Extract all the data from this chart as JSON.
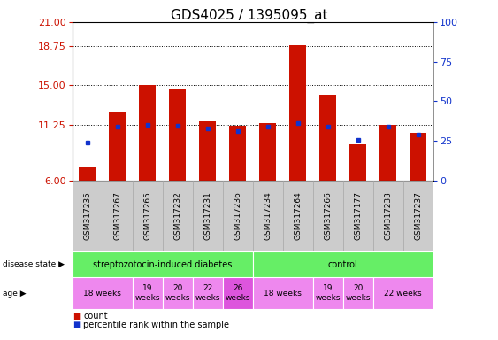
{
  "title": "GDS4025 / 1395095_at",
  "samples": [
    "GSM317235",
    "GSM317267",
    "GSM317265",
    "GSM317232",
    "GSM317231",
    "GSM317236",
    "GSM317234",
    "GSM317264",
    "GSM317266",
    "GSM317177",
    "GSM317233",
    "GSM317237"
  ],
  "red_values": [
    7.2,
    12.5,
    15.0,
    14.6,
    11.55,
    11.2,
    11.45,
    18.85,
    14.1,
    9.4,
    11.25,
    10.5
  ],
  "blue_values": [
    9.6,
    11.05,
    11.22,
    11.15,
    10.95,
    10.65,
    11.1,
    11.45,
    11.05,
    9.8,
    11.05,
    10.3
  ],
  "y_min": 6,
  "y_max": 21,
  "y_ticks_left": [
    6,
    11.25,
    15,
    18.75,
    21
  ],
  "y_ticks_right": [
    0,
    25,
    50,
    75,
    100
  ],
  "bar_width": 0.55,
  "red_color": "#cc1100",
  "blue_color": "#1133cc",
  "legend_count_color": "#cc1100",
  "legend_pct_color": "#1133cc",
  "bg_color": "#ffffff",
  "tick_label_color_left": "#cc1100",
  "tick_label_color_right": "#1133cc",
  "title_fontsize": 11,
  "tick_fontsize": 8,
  "sample_fontsize": 6.5,
  "label_fontsize": 7.5,
  "green_color": "#66ee66",
  "pink_color": "#ee88ee",
  "dark_pink_color": "#dd55dd",
  "gray_color": "#cccccc",
  "ds_groups": [
    {
      "start": 0,
      "end": 6,
      "label": "streptozotocin-induced diabetes"
    },
    {
      "start": 6,
      "end": 12,
      "label": "control"
    }
  ],
  "age_groups": [
    {
      "start": 0,
      "end": 2,
      "label": "18 weeks",
      "dark": false
    },
    {
      "start": 2,
      "end": 3,
      "label": "19\nweeks",
      "dark": false
    },
    {
      "start": 3,
      "end": 4,
      "label": "20\nweeks",
      "dark": false
    },
    {
      "start": 4,
      "end": 5,
      "label": "22\nweeks",
      "dark": false
    },
    {
      "start": 5,
      "end": 6,
      "label": "26\nweeks",
      "dark": true
    },
    {
      "start": 6,
      "end": 8,
      "label": "18 weeks",
      "dark": false
    },
    {
      "start": 8,
      "end": 9,
      "label": "19\nweeks",
      "dark": false
    },
    {
      "start": 9,
      "end": 10,
      "label": "20\nweeks",
      "dark": false
    },
    {
      "start": 10,
      "end": 12,
      "label": "22 weeks",
      "dark": false
    }
  ]
}
